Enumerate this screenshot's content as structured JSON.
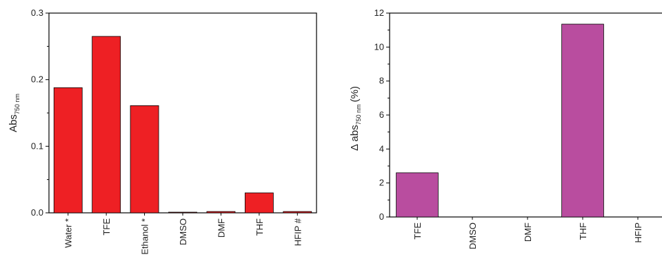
{
  "chart_data": [
    {
      "type": "bar",
      "categories": [
        "Water *",
        "TFE",
        "Ethanol *",
        "DMSO",
        "DMF",
        "THF",
        "HFIP #"
      ],
      "values": [
        0.188,
        0.265,
        0.161,
        0.001,
        0.002,
        0.03,
        0.002
      ],
      "ylabel_main": "Abs",
      "ylabel_sub": "750 nm",
      "ylim": [
        0,
        0.3
      ],
      "yticks": [
        0.0,
        0.1,
        0.2,
        0.3
      ],
      "ytick_labels": [
        "0.0",
        "0.1",
        "0.2",
        "0.3"
      ],
      "minor_ticks_per_major": 2,
      "bar_color": "#ee2024",
      "grid": false
    },
    {
      "type": "bar",
      "categories": [
        "TFE",
        "DMSO",
        "DMF",
        "THF",
        "HFIP"
      ],
      "values": [
        2.6,
        0,
        0,
        11.35,
        0
      ],
      "ylabel_main": "Δ abs",
      "ylabel_sub": "750 nm",
      "ylabel_unit": "(%)",
      "ylim": [
        0,
        12
      ],
      "yticks": [
        0,
        2,
        4,
        6,
        8,
        10,
        12
      ],
      "ytick_labels": [
        "0",
        "2",
        "4",
        "6",
        "8",
        "10",
        "12"
      ],
      "minor_ticks_per_major": 2,
      "bar_color": "#b94d9f",
      "grid": false
    }
  ]
}
